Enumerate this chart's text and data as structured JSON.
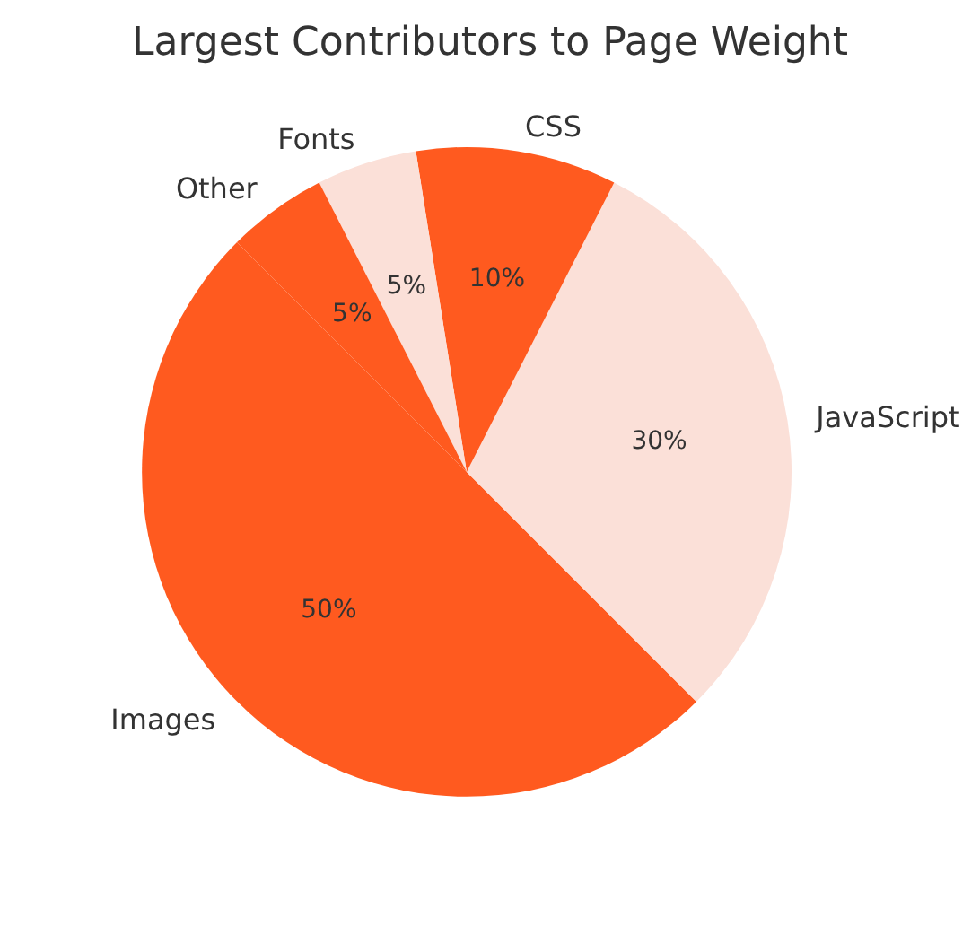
{
  "chart_data": {
    "type": "pie",
    "title": "Largest Contributors to Page Weight",
    "categories": [
      "Images",
      "JavaScript",
      "CSS",
      "Fonts",
      "Other"
    ],
    "values": [
      50,
      30,
      10,
      5,
      5
    ],
    "value_labels": [
      "50%",
      "30%",
      "10%",
      "5%",
      "5%"
    ],
    "colors": [
      "#ff5a1f",
      "#fbe0d8",
      "#ff5a1f",
      "#fbe0d8",
      "#ff5a1f"
    ],
    "legend": false
  }
}
